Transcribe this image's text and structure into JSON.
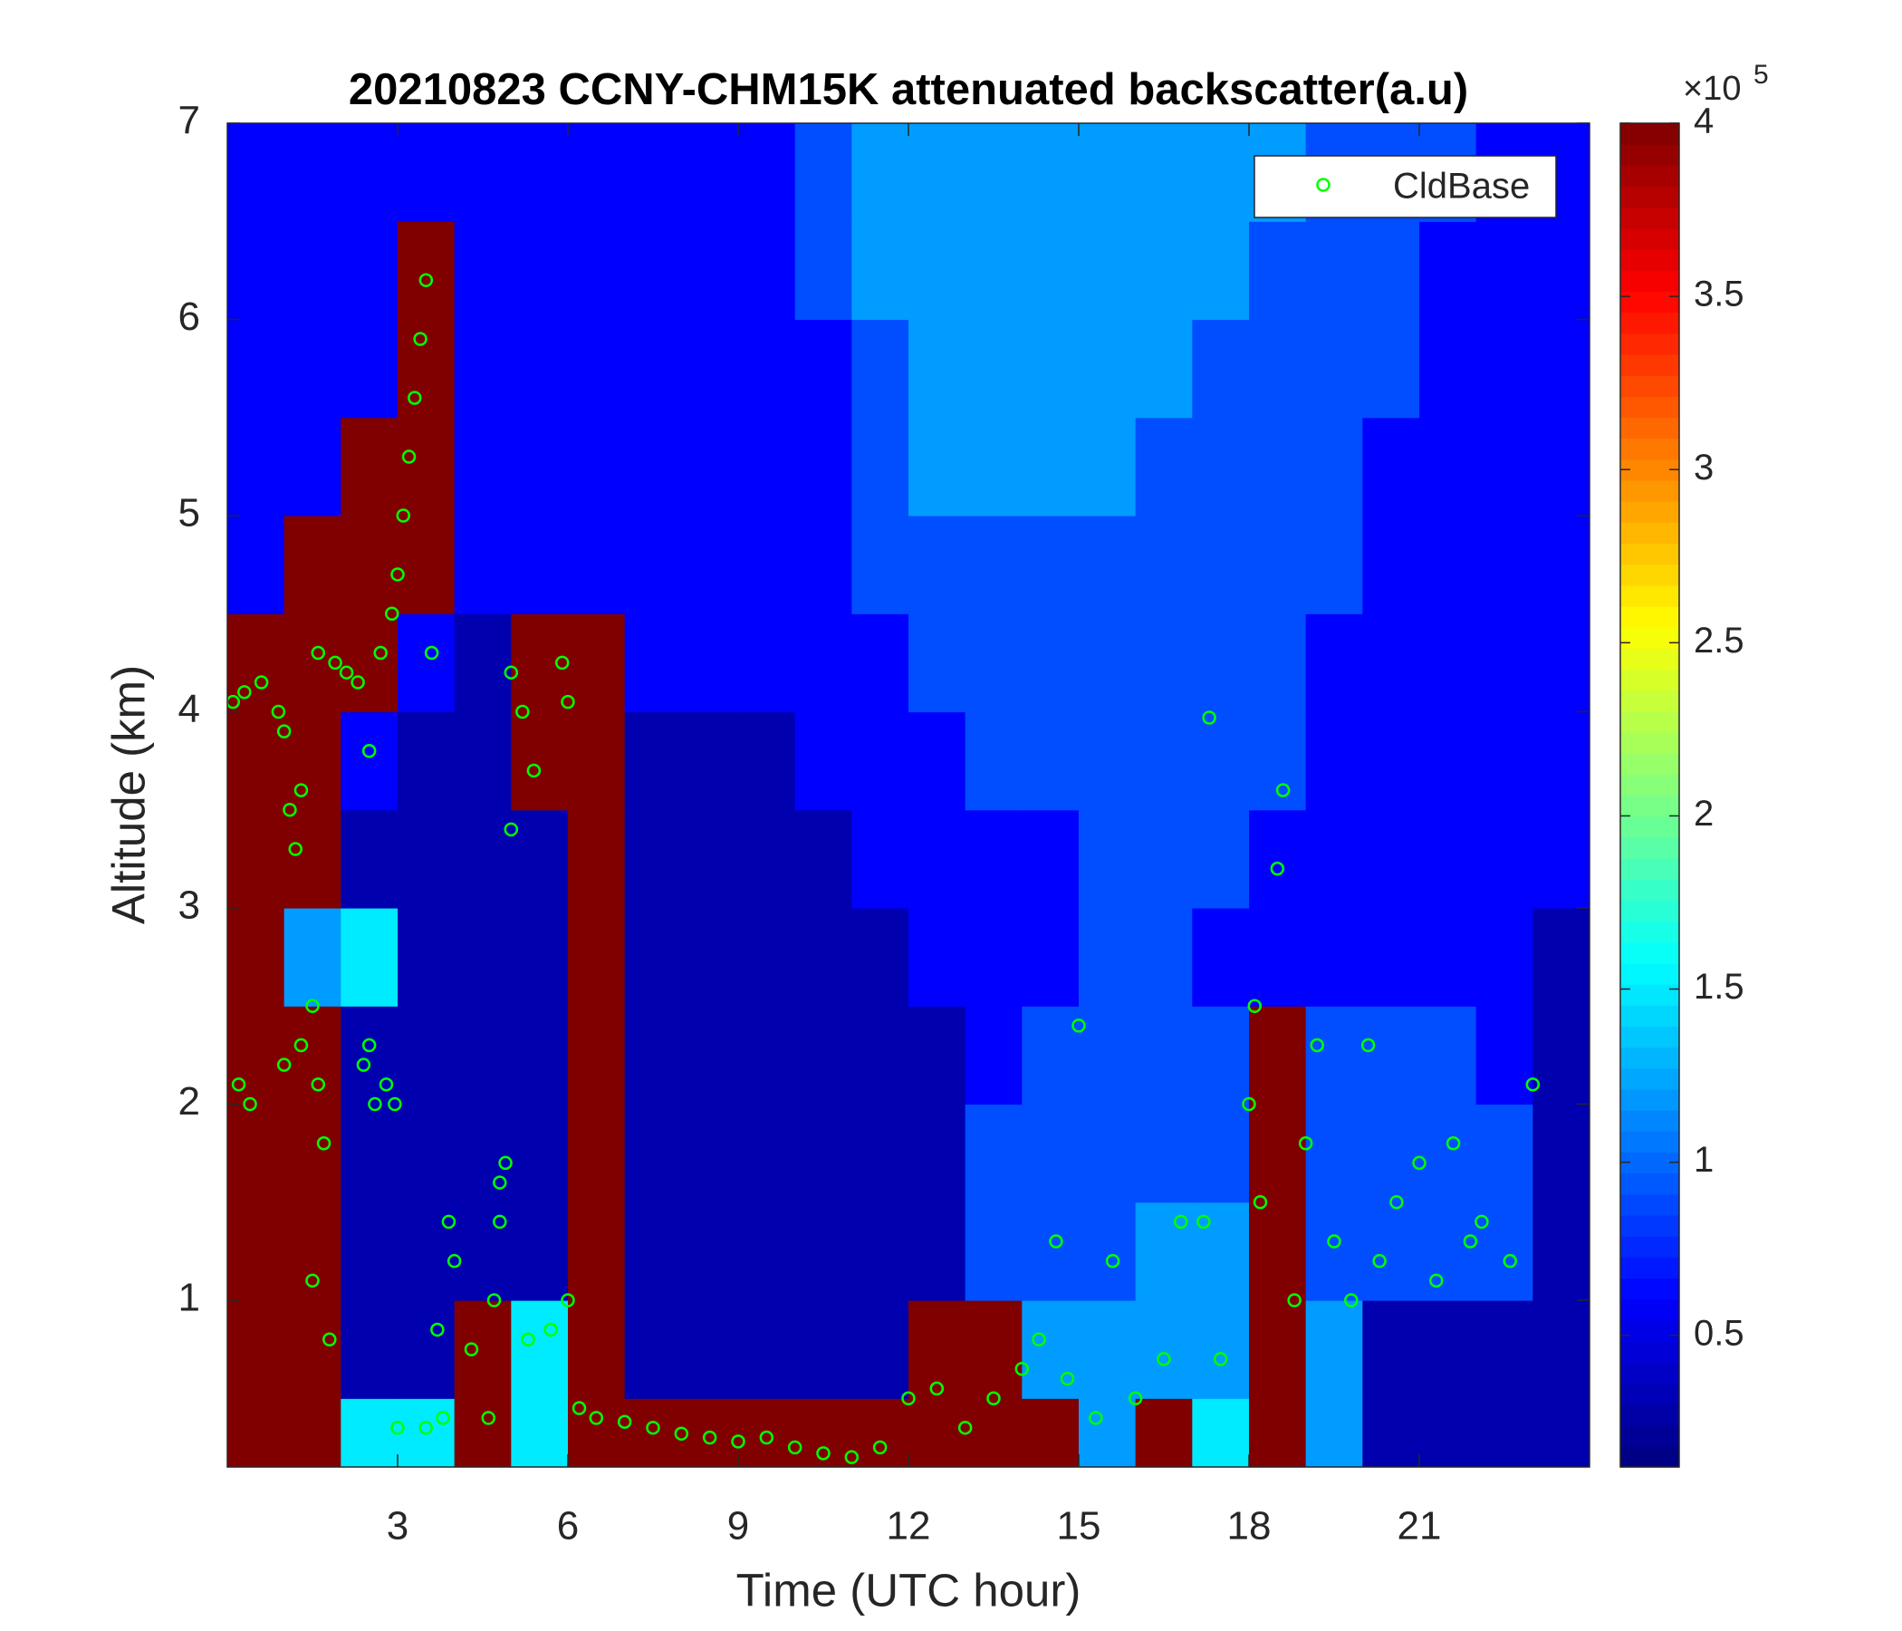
{
  "chart_data": {
    "type": "heatmap",
    "title": "20210823 CCNY-CHM15K attenuated backscatter(a.u)",
    "xlabel": "Time (UTC hour)",
    "ylabel": "Altitude (km)",
    "xlim": [
      0,
      24
    ],
    "ylim": [
      0.15,
      7
    ],
    "xticks": [
      3,
      6,
      9,
      12,
      15,
      18,
      21
    ],
    "yticks": [
      1,
      2,
      3,
      4,
      5,
      6,
      7
    ],
    "colormap": "jet",
    "clim": [
      12000,
      400000
    ],
    "colorbar_ticks": [
      {
        "value": 50000,
        "label": "0.5"
      },
      {
        "value": 100000,
        "label": "1"
      },
      {
        "value": 150000,
        "label": "1.5"
      },
      {
        "value": 200000,
        "label": "2"
      },
      {
        "value": 250000,
        "label": "2.5"
      },
      {
        "value": 300000,
        "label": "3"
      },
      {
        "value": 350000,
        "label": "3.5"
      },
      {
        "value": 400000,
        "label": "4"
      }
    ],
    "colorbar_multiplier": "×10",
    "colorbar_exponent": "5",
    "x_edges": [
      0,
      1,
      2,
      3,
      4,
      5,
      6,
      7,
      8,
      9,
      10,
      11,
      12,
      13,
      14,
      15,
      16,
      17,
      18,
      19,
      20,
      21,
      22,
      23,
      24
    ],
    "y_edges": [
      0.15,
      0.5,
      1,
      1.5,
      2,
      2.5,
      3,
      3.5,
      4,
      4.5,
      5,
      5.5,
      6,
      6.5,
      7
    ],
    "z": [
      [
        400000,
        400000,
        150000,
        150000,
        400000,
        150000,
        400000,
        400000,
        400000,
        400000,
        400000,
        400000,
        400000,
        400000,
        400000,
        120000,
        400000,
        150000,
        400000,
        120000,
        30000,
        30000,
        30000,
        30000
      ],
      [
        400000,
        400000,
        30000,
        30000,
        400000,
        150000,
        400000,
        30000,
        30000,
        30000,
        30000,
        30000,
        400000,
        400000,
        120000,
        120000,
        120000,
        120000,
        400000,
        120000,
        30000,
        30000,
        30000,
        30000
      ],
      [
        400000,
        400000,
        30000,
        30000,
        30000,
        30000,
        400000,
        30000,
        30000,
        30000,
        30000,
        30000,
        30000,
        90000,
        90000,
        90000,
        120000,
        120000,
        400000,
        90000,
        90000,
        90000,
        90000,
        30000
      ],
      [
        400000,
        400000,
        30000,
        30000,
        30000,
        30000,
        400000,
        30000,
        30000,
        30000,
        30000,
        30000,
        30000,
        90000,
        90000,
        90000,
        90000,
        90000,
        400000,
        90000,
        90000,
        90000,
        90000,
        30000
      ],
      [
        400000,
        400000,
        30000,
        30000,
        30000,
        30000,
        400000,
        30000,
        30000,
        30000,
        30000,
        30000,
        30000,
        60000,
        90000,
        90000,
        90000,
        90000,
        400000,
        90000,
        90000,
        90000,
        60000,
        30000
      ],
      [
        400000,
        120000,
        150000,
        30000,
        30000,
        30000,
        400000,
        30000,
        30000,
        30000,
        30000,
        30000,
        60000,
        60000,
        60000,
        90000,
        90000,
        60000,
        60000,
        60000,
        60000,
        60000,
        60000,
        30000
      ],
      [
        400000,
        400000,
        30000,
        30000,
        30000,
        30000,
        400000,
        30000,
        30000,
        30000,
        30000,
        60000,
        60000,
        60000,
        60000,
        90000,
        90000,
        90000,
        60000,
        60000,
        60000,
        60000,
        60000,
        60000
      ],
      [
        400000,
        400000,
        60000,
        30000,
        30000,
        400000,
        400000,
        30000,
        30000,
        30000,
        60000,
        60000,
        60000,
        90000,
        90000,
        90000,
        90000,
        90000,
        90000,
        60000,
        60000,
        60000,
        60000,
        60000
      ],
      [
        400000,
        400000,
        400000,
        60000,
        30000,
        400000,
        400000,
        60000,
        60000,
        60000,
        60000,
        60000,
        90000,
        90000,
        90000,
        90000,
        90000,
        90000,
        90000,
        60000,
        60000,
        60000,
        60000,
        60000
      ],
      [
        60000,
        400000,
        400000,
        400000,
        60000,
        60000,
        60000,
        60000,
        60000,
        60000,
        60000,
        90000,
        90000,
        90000,
        90000,
        90000,
        90000,
        90000,
        90000,
        90000,
        60000,
        60000,
        60000,
        60000
      ],
      [
        60000,
        60000,
        400000,
        400000,
        60000,
        60000,
        60000,
        60000,
        60000,
        60000,
        60000,
        90000,
        120000,
        120000,
        120000,
        120000,
        90000,
        90000,
        90000,
        90000,
        60000,
        60000,
        60000,
        60000
      ],
      [
        60000,
        60000,
        60000,
        400000,
        60000,
        60000,
        60000,
        60000,
        60000,
        60000,
        60000,
        90000,
        120000,
        120000,
        120000,
        120000,
        120000,
        90000,
        90000,
        90000,
        90000,
        60000,
        60000,
        60000
      ],
      [
        60000,
        60000,
        60000,
        400000,
        60000,
        60000,
        60000,
        60000,
        60000,
        60000,
        90000,
        120000,
        120000,
        120000,
        120000,
        120000,
        120000,
        120000,
        90000,
        90000,
        90000,
        60000,
        60000,
        60000
      ],
      [
        60000,
        60000,
        60000,
        60000,
        60000,
        60000,
        60000,
        60000,
        60000,
        60000,
        90000,
        120000,
        120000,
        120000,
        120000,
        120000,
        120000,
        120000,
        120000,
        90000,
        90000,
        90000,
        60000,
        60000
      ]
    ],
    "overlay": {
      "type": "scatter",
      "name": "CldBase",
      "color": "#00ff00",
      "x": [
        0.1,
        0.3,
        0.6,
        0.9,
        1.0,
        1.1,
        1.2,
        1.3,
        1.0,
        0.2,
        0.4,
        1.3,
        1.5,
        1.6,
        1.7,
        1.5,
        1.8,
        1.6,
        1.9,
        2.1,
        2.3,
        2.4,
        2.5,
        2.6,
        2.5,
        2.7,
        2.9,
        3.0,
        3.1,
        3.2,
        3.3,
        3.4,
        3.5,
        3.6,
        2.8,
        2.95,
        3.0,
        3.5,
        3.8,
        3.7,
        3.9,
        4.0,
        4.3,
        4.6,
        4.7,
        4.8,
        4.9,
        4.8,
        5.0,
        5.2,
        5.0,
        5.4,
        5.3,
        5.7,
        6.0,
        5.9,
        6.0,
        6.2,
        6.5,
        7.0,
        7.5,
        8.0,
        8.5,
        9.0,
        9.5,
        10.0,
        10.5,
        11.0,
        11.5,
        12.0,
        12.5,
        13.0,
        13.5,
        14.0,
        14.3,
        14.6,
        14.8,
        15.0,
        15.3,
        15.6,
        16.0,
        16.5,
        16.8,
        17.2,
        17.5,
        17.3,
        18.0,
        18.1,
        18.2,
        18.6,
        18.5,
        18.8,
        19.0,
        19.2,
        19.5,
        19.8,
        20.1,
        20.3,
        20.6,
        21.0,
        21.3,
        21.6,
        21.9,
        22.1,
        22.6,
        23.0
      ],
      "y": [
        4.05,
        4.1,
        4.15,
        4.0,
        3.9,
        3.5,
        3.3,
        3.6,
        2.2,
        2.1,
        2.0,
        2.3,
        2.5,
        2.1,
        1.8,
        1.1,
        0.8,
        4.3,
        4.25,
        4.2,
        4.15,
        2.2,
        2.3,
        2.0,
        3.8,
        4.3,
        4.5,
        4.7,
        5.0,
        5.3,
        5.6,
        5.9,
        6.2,
        4.3,
        2.1,
        2.0,
        0.35,
        0.35,
        0.4,
        0.85,
        1.4,
        1.2,
        0.75,
        0.4,
        1.0,
        1.6,
        1.7,
        1.4,
        4.2,
        4.0,
        3.4,
        3.7,
        0.8,
        0.85,
        4.05,
        4.25,
        1.0,
        0.45,
        0.4,
        0.38,
        0.35,
        0.32,
        0.3,
        0.28,
        0.3,
        0.25,
        0.22,
        0.2,
        0.25,
        0.5,
        0.55,
        0.35,
        0.5,
        0.65,
        0.8,
        1.3,
        0.6,
        2.4,
        0.4,
        1.2,
        0.5,
        0.7,
        1.4,
        1.4,
        0.7,
        3.97,
        2.0,
        2.5,
        1.5,
        3.6,
        3.2,
        1.0,
        1.8,
        2.3,
        1.3,
        1.0,
        2.3,
        1.2,
        1.5,
        1.7,
        1.1,
        1.8,
        1.3,
        1.4,
        1.2,
        2.1
      ]
    },
    "legend_loc": "upper right"
  }
}
